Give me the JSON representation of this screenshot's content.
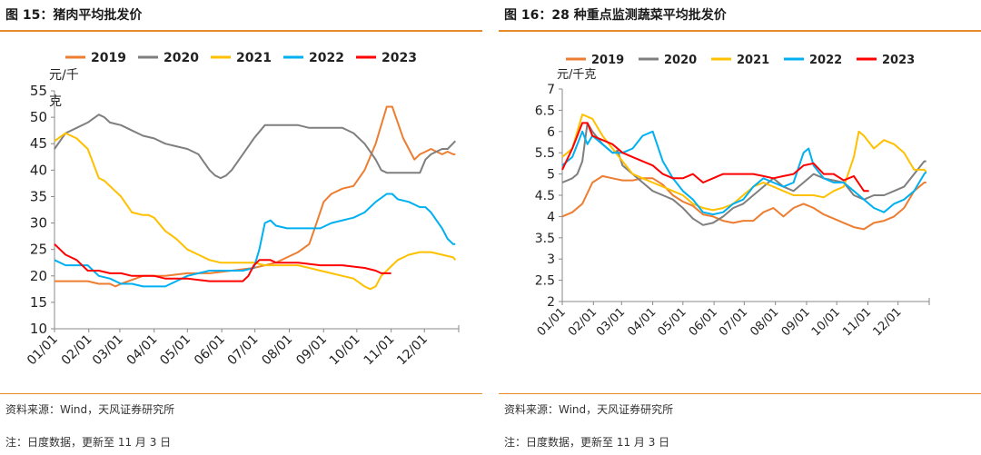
{
  "charts": [
    {
      "figure_title": "图 15：猪肉平均批发价",
      "source_text": "资料来源：Wind，天风证券研究所",
      "note_text": "注：日度数据，更新至 11 月 3 日"
    },
    {
      "figure_title": "图 16：28 种重点监测蔬菜平均批发价",
      "source_text": "资料来源：Wind，天风证券研究所",
      "note_text": "注：日度数据，更新至 11 月 3 日"
    }
  ],
  "chart_data": [
    {
      "type": "line",
      "title": "图 15：猪肉平均批发价",
      "ylabel": "元/千克",
      "ylim": [
        10,
        55
      ],
      "yticks": [
        10,
        15,
        20,
        25,
        30,
        35,
        40,
        45,
        50,
        55
      ],
      "xlim": [
        0,
        365
      ],
      "x_tick_labels": [
        "01/01",
        "02/01",
        "03/01",
        "04/01",
        "05/01",
        "06/01",
        "07/01",
        "08/01",
        "09/01",
        "10/01",
        "11/01",
        "12/01"
      ],
      "x_tick_positions": [
        0,
        31,
        59,
        90,
        120,
        151,
        181,
        212,
        243,
        273,
        304,
        334
      ],
      "legend_position": "top",
      "series": [
        {
          "name": "2019",
          "color": "#ed7d31",
          "x": [
            0,
            20,
            30,
            40,
            50,
            55,
            60,
            80,
            100,
            120,
            140,
            160,
            180,
            200,
            210,
            220,
            230,
            235,
            243,
            250,
            260,
            270,
            280,
            290,
            300,
            305,
            310,
            315,
            320,
            325,
            330,
            335,
            340,
            345,
            350,
            355,
            360,
            362
          ],
          "y": [
            19,
            19,
            19,
            18.5,
            18.5,
            18,
            18.5,
            20,
            20,
            20.5,
            20.5,
            21,
            21.5,
            22.5,
            23.5,
            24.5,
            26,
            29,
            34,
            35.5,
            36.5,
            37,
            40,
            45,
            52,
            52,
            49,
            46,
            44,
            42,
            43,
            43.5,
            44,
            43.5,
            43,
            43.5,
            43,
            43
          ]
        },
        {
          "name": "2020",
          "color": "#7f7f7f",
          "x": [
            0,
            10,
            20,
            30,
            40,
            45,
            50,
            60,
            70,
            80,
            90,
            100,
            110,
            120,
            130,
            140,
            145,
            150,
            155,
            160,
            170,
            180,
            190,
            200,
            210,
            220,
            230,
            240,
            250,
            260,
            270,
            280,
            290,
            295,
            300,
            305,
            310,
            320,
            330,
            335,
            340,
            350,
            355,
            362
          ],
          "y": [
            44,
            47,
            48,
            49,
            50.5,
            50,
            49,
            48.5,
            47.5,
            46.5,
            46,
            45,
            44.5,
            44,
            43,
            40,
            39,
            38.5,
            39,
            40,
            43,
            46,
            48.5,
            48.5,
            48.5,
            48.5,
            48,
            48,
            48,
            48,
            47,
            45,
            42,
            40,
            39.5,
            39.5,
            39.5,
            39.5,
            39.5,
            42,
            43,
            44,
            44,
            45.5
          ]
        },
        {
          "name": "2021",
          "color": "#ffc000",
          "x": [
            0,
            10,
            20,
            30,
            40,
            45,
            50,
            60,
            70,
            80,
            85,
            90,
            100,
            110,
            120,
            130,
            140,
            150,
            160,
            170,
            180,
            190,
            200,
            210,
            220,
            230,
            240,
            250,
            260,
            270,
            280,
            285,
            290,
            295,
            300,
            305,
            310,
            320,
            330,
            340,
            350,
            360,
            362
          ],
          "y": [
            45.5,
            47,
            46,
            44,
            38.5,
            38,
            37,
            35,
            32,
            31.5,
            31.5,
            31,
            28.5,
            27,
            25,
            24,
            23,
            22.5,
            22.5,
            22.5,
            22.5,
            22,
            22,
            22,
            22,
            21.5,
            21,
            20.5,
            20,
            19.5,
            18,
            17.5,
            18,
            20,
            21,
            22,
            23,
            24,
            24.5,
            24.5,
            24,
            23.5,
            23
          ]
        },
        {
          "name": "2022",
          "color": "#00b0f0",
          "x": [
            0,
            10,
            20,
            30,
            40,
            50,
            60,
            70,
            80,
            90,
            100,
            110,
            120,
            130,
            140,
            150,
            160,
            170,
            180,
            185,
            190,
            195,
            200,
            210,
            220,
            230,
            240,
            250,
            260,
            270,
            280,
            290,
            300,
            305,
            310,
            320,
            330,
            335,
            340,
            350,
            355,
            360,
            362
          ],
          "y": [
            23,
            22,
            22,
            22,
            20,
            19.5,
            18.5,
            18.5,
            18,
            18,
            18,
            19,
            20,
            20.5,
            21,
            21,
            21,
            21,
            21.5,
            25,
            30,
            30.5,
            29.5,
            29,
            29,
            29,
            29,
            30,
            30.5,
            31,
            32,
            34,
            35.5,
            35.5,
            34.5,
            34,
            33,
            33,
            32,
            29,
            27,
            26,
            26
          ]
        },
        {
          "name": "2023",
          "color": "#ff0000",
          "x": [
            0,
            5,
            10,
            15,
            20,
            30,
            40,
            50,
            60,
            70,
            80,
            90,
            100,
            120,
            140,
            160,
            170,
            175,
            180,
            185,
            190,
            195,
            200,
            210,
            220,
            240,
            260,
            280,
            290,
            295,
            300,
            304
          ],
          "y": [
            26,
            25,
            24,
            23.5,
            23,
            21,
            21,
            20.5,
            20.5,
            20,
            20,
            20,
            19.5,
            19.5,
            19,
            19,
            19,
            20,
            22,
            23,
            23,
            23,
            22.5,
            22.5,
            22.5,
            22,
            22,
            21.5,
            21,
            20.5,
            20.5,
            20.5
          ]
        }
      ]
    },
    {
      "type": "line",
      "title": "图 16：28 种重点监测蔬菜平均批发价",
      "ylabel": "元/千克",
      "ylim": [
        2,
        7
      ],
      "yticks": [
        2,
        2.5,
        3,
        3.5,
        4,
        4.5,
        5,
        5.5,
        6,
        6.5,
        7
      ],
      "xlim": [
        0,
        365
      ],
      "x_tick_labels": [
        "01/01",
        "02/01",
        "03/01",
        "04/01",
        "05/01",
        "06/01",
        "07/01",
        "08/01",
        "09/01",
        "10/01",
        "11/01",
        "12/01"
      ],
      "x_tick_positions": [
        0,
        31,
        59,
        90,
        120,
        151,
        181,
        212,
        243,
        273,
        304,
        334
      ],
      "legend_position": "top",
      "series": [
        {
          "name": "2019",
          "color": "#ed7d31",
          "x": [
            0,
            10,
            20,
            30,
            40,
            50,
            60,
            70,
            80,
            90,
            100,
            110,
            120,
            130,
            140,
            150,
            160,
            170,
            180,
            190,
            200,
            210,
            220,
            230,
            240,
            250,
            260,
            270,
            280,
            290,
            300,
            310,
            320,
            330,
            340,
            350,
            360,
            362
          ],
          "y": [
            4,
            4.1,
            4.3,
            4.8,
            4.95,
            4.9,
            4.85,
            4.85,
            4.9,
            4.9,
            4.75,
            4.5,
            4.35,
            4.25,
            4.05,
            4.0,
            3.9,
            3.85,
            3.9,
            3.9,
            4.1,
            4.2,
            4.0,
            4.2,
            4.3,
            4.2,
            4.05,
            3.95,
            3.85,
            3.75,
            3.7,
            3.85,
            3.9,
            4.0,
            4.2,
            4.6,
            4.8,
            4.8
          ]
        },
        {
          "name": "2020",
          "color": "#7f7f7f",
          "x": [
            0,
            10,
            15,
            20,
            25,
            30,
            40,
            50,
            55,
            60,
            70,
            80,
            90,
            100,
            110,
            120,
            130,
            140,
            150,
            160,
            170,
            180,
            190,
            200,
            210,
            220,
            230,
            240,
            250,
            260,
            270,
            280,
            290,
            300,
            310,
            320,
            330,
            340,
            350,
            360,
            362
          ],
          "y": [
            4.8,
            4.9,
            5.0,
            5.3,
            6.2,
            6.0,
            5.7,
            5.5,
            5.55,
            5.2,
            5.0,
            4.8,
            4.6,
            4.5,
            4.4,
            4.2,
            3.95,
            3.8,
            3.85,
            4.0,
            4.2,
            4.3,
            4.5,
            4.7,
            4.9,
            4.7,
            4.6,
            4.8,
            5.0,
            4.9,
            4.85,
            4.8,
            4.5,
            4.4,
            4.5,
            4.5,
            4.6,
            4.7,
            5.0,
            5.3,
            5.3
          ]
        },
        {
          "name": "2021",
          "color": "#ffc000",
          "x": [
            0,
            10,
            20,
            30,
            40,
            50,
            60,
            70,
            80,
            90,
            100,
            110,
            120,
            130,
            140,
            150,
            160,
            170,
            180,
            190,
            200,
            210,
            220,
            230,
            240,
            250,
            260,
            270,
            280,
            290,
            295,
            300,
            310,
            320,
            330,
            340,
            350,
            360,
            362
          ],
          "y": [
            5.4,
            5.6,
            6.4,
            6.3,
            5.9,
            5.6,
            5.3,
            5.0,
            4.9,
            4.8,
            4.7,
            4.6,
            4.5,
            4.3,
            4.2,
            4.15,
            4.2,
            4.3,
            4.5,
            4.7,
            4.8,
            4.7,
            4.6,
            4.5,
            4.5,
            4.5,
            4.45,
            4.6,
            4.7,
            5.4,
            6.0,
            5.9,
            5.6,
            5.8,
            5.7,
            5.5,
            5.1,
            5.1,
            5.05
          ]
        },
        {
          "name": "2022",
          "color": "#00b0f0",
          "x": [
            0,
            10,
            20,
            25,
            30,
            40,
            50,
            60,
            70,
            80,
            90,
            100,
            110,
            120,
            130,
            140,
            150,
            160,
            170,
            180,
            190,
            200,
            210,
            220,
            230,
            240,
            245,
            250,
            260,
            270,
            280,
            290,
            300,
            310,
            320,
            330,
            340,
            350,
            360,
            362
          ],
          "y": [
            5.2,
            5.4,
            6.0,
            5.7,
            5.9,
            5.7,
            5.5,
            5.5,
            5.6,
            5.9,
            6.0,
            5.3,
            4.9,
            4.6,
            4.4,
            4.1,
            4.05,
            4.1,
            4.3,
            4.4,
            4.7,
            4.9,
            4.8,
            4.7,
            4.8,
            5.5,
            5.6,
            5.2,
            4.9,
            4.8,
            4.8,
            4.6,
            4.4,
            4.2,
            4.1,
            4.3,
            4.4,
            4.6,
            5.0,
            5.05
          ]
        },
        {
          "name": "2023",
          "color": "#ff0000",
          "x": [
            0,
            10,
            20,
            25,
            30,
            40,
            50,
            60,
            70,
            80,
            90,
            100,
            110,
            120,
            130,
            140,
            150,
            160,
            170,
            180,
            190,
            200,
            210,
            220,
            230,
            240,
            250,
            260,
            270,
            280,
            290,
            300,
            305
          ],
          "y": [
            5.1,
            5.6,
            6.2,
            6.2,
            5.9,
            5.8,
            5.7,
            5.5,
            5.4,
            5.3,
            5.2,
            5.0,
            4.9,
            4.9,
            5.0,
            4.8,
            4.9,
            5.0,
            5.0,
            5.0,
            5.0,
            4.95,
            4.9,
            4.95,
            5.0,
            5.2,
            5.25,
            5.0,
            5.0,
            4.85,
            4.95,
            4.6,
            4.6
          ]
        }
      ]
    }
  ]
}
